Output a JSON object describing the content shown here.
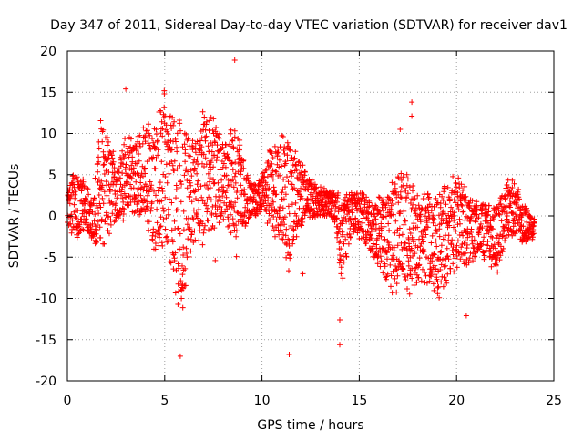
{
  "chart_data": {
    "type": "scatter",
    "title": "Day 347 of 2011, Sidereal Day-to-day VTEC variation (SDTVAR) for receiver dav1",
    "xlabel": "GPS time / hours",
    "ylabel": "SDTVAR / TECUs",
    "xlim": [
      0,
      25
    ],
    "ylim": [
      -20,
      20
    ],
    "xticks": [
      0,
      5,
      10,
      15,
      20,
      25
    ],
    "yticks": [
      -20,
      -15,
      -10,
      -5,
      0,
      5,
      10,
      15,
      20
    ],
    "xtick_labels": [
      "0",
      "5",
      "10",
      "15",
      "20",
      "25"
    ],
    "ytick_labels": [
      "-20",
      "-15",
      "-10",
      "-5",
      "0",
      "5",
      "10",
      "15",
      "20"
    ],
    "grid": true,
    "marker": "+",
    "color": "#ff0000",
    "x_range_observed": [
      0,
      24
    ],
    "outliers": [
      {
        "x": 3.0,
        "y": 15.4
      },
      {
        "x": 8.6,
        "y": 18.9
      },
      {
        "x": 17.7,
        "y": 13.8
      },
      {
        "x": 17.7,
        "y": 12.1
      },
      {
        "x": 17.1,
        "y": 10.5
      },
      {
        "x": 17.6,
        "y": 3.5
      },
      {
        "x": 12.1,
        "y": -7.0
      },
      {
        "x": 11.4,
        "y": -16.8
      },
      {
        "x": 14.0,
        "y": -15.6
      },
      {
        "x": 20.5,
        "y": -12.1
      },
      {
        "x": 7.6,
        "y": -5.4
      },
      {
        "x": 20.4,
        "y": -5.8
      },
      {
        "x": 5.8,
        "y": -17.0
      },
      {
        "x": 14.0,
        "y": -12.6
      }
    ],
    "envelope": [
      {
        "x": 0.0,
        "lo": -1.0,
        "hi": 3.0
      },
      {
        "x": 0.3,
        "lo": -3.0,
        "hi": 5.5
      },
      {
        "x": 0.7,
        "lo": -2.5,
        "hi": 5.0
      },
      {
        "x": 1.0,
        "lo": -2.0,
        "hi": 4.0
      },
      {
        "x": 1.3,
        "lo": -3.5,
        "hi": 2.0
      },
      {
        "x": 1.7,
        "lo": -5.0,
        "hi": 13.0
      },
      {
        "x": 2.2,
        "lo": -2.0,
        "hi": 9.0
      },
      {
        "x": 2.6,
        "lo": -1.0,
        "hi": 7.0
      },
      {
        "x": 3.0,
        "lo": -0.5,
        "hi": 10.0
      },
      {
        "x": 3.5,
        "lo": 0.0,
        "hi": 9.0
      },
      {
        "x": 4.0,
        "lo": -1.0,
        "hi": 12.0
      },
      {
        "x": 4.5,
        "lo": -6.0,
        "hi": 11.0
      },
      {
        "x": 5.0,
        "lo": -4.0,
        "hi": 15.5
      },
      {
        "x": 5.4,
        "lo": -7.5,
        "hi": 13.0
      },
      {
        "x": 5.8,
        "lo": -16.0,
        "hi": 12.0
      },
      {
        "x": 6.2,
        "lo": -6.0,
        "hi": 11.0
      },
      {
        "x": 6.6,
        "lo": -3.0,
        "hi": 10.0
      },
      {
        "x": 7.0,
        "lo": -4.0,
        "hi": 13.0
      },
      {
        "x": 7.4,
        "lo": -2.0,
        "hi": 13.0
      },
      {
        "x": 7.8,
        "lo": -1.0,
        "hi": 10.0
      },
      {
        "x": 8.2,
        "lo": -1.5,
        "hi": 9.0
      },
      {
        "x": 8.6,
        "lo": -6.0,
        "hi": 12.5
      },
      {
        "x": 9.0,
        "lo": -2.0,
        "hi": 8.0
      },
      {
        "x": 9.5,
        "lo": 0.0,
        "hi": 4.0
      },
      {
        "x": 10.0,
        "lo": 0.0,
        "hi": 5.0
      },
      {
        "x": 10.5,
        "lo": -2.0,
        "hi": 9.0
      },
      {
        "x": 11.0,
        "lo": -4.0,
        "hi": 10.0
      },
      {
        "x": 11.4,
        "lo": -7.0,
        "hi": 10.5
      },
      {
        "x": 11.8,
        "lo": -3.0,
        "hi": 8.0
      },
      {
        "x": 12.3,
        "lo": 0.0,
        "hi": 5.0
      },
      {
        "x": 12.8,
        "lo": -0.5,
        "hi": 4.0
      },
      {
        "x": 13.3,
        "lo": 0.0,
        "hi": 3.5
      },
      {
        "x": 13.8,
        "lo": -1.0,
        "hi": 3.0
      },
      {
        "x": 14.1,
        "lo": -9.0,
        "hi": 2.5
      },
      {
        "x": 14.6,
        "lo": -2.0,
        "hi": 3.0
      },
      {
        "x": 15.1,
        "lo": -3.0,
        "hi": 3.0
      },
      {
        "x": 15.6,
        "lo": -5.0,
        "hi": 2.0
      },
      {
        "x": 16.1,
        "lo": -7.0,
        "hi": 3.0
      },
      {
        "x": 16.6,
        "lo": -10.0,
        "hi": 4.0
      },
      {
        "x": 17.1,
        "lo": -9.0,
        "hi": 6.0
      },
      {
        "x": 17.6,
        "lo": -9.5,
        "hi": 5.0
      },
      {
        "x": 18.1,
        "lo": -8.0,
        "hi": 2.0
      },
      {
        "x": 18.6,
        "lo": -9.0,
        "hi": 4.0
      },
      {
        "x": 19.1,
        "lo": -10.0,
        "hi": 3.0
      },
      {
        "x": 19.6,
        "lo": -8.0,
        "hi": 5.0
      },
      {
        "x": 20.1,
        "lo": -7.0,
        "hi": 5.5
      },
      {
        "x": 20.6,
        "lo": -6.0,
        "hi": 3.0
      },
      {
        "x": 21.1,
        "lo": -5.0,
        "hi": 2.0
      },
      {
        "x": 21.6,
        "lo": -6.0,
        "hi": 2.0
      },
      {
        "x": 22.1,
        "lo": -7.0,
        "hi": 2.0
      },
      {
        "x": 22.6,
        "lo": -3.0,
        "hi": 5.0
      },
      {
        "x": 23.1,
        "lo": -3.0,
        "hi": 4.0
      },
      {
        "x": 23.5,
        "lo": -3.5,
        "hi": 1.5
      },
      {
        "x": 23.9,
        "lo": -3.0,
        "hi": 0.0
      }
    ]
  }
}
